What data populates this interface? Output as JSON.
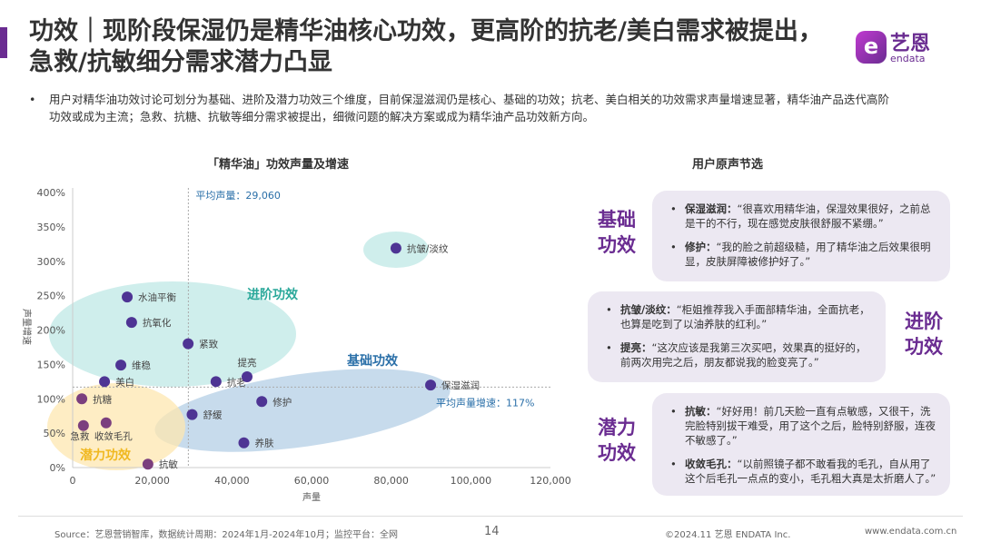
{
  "header": {
    "title": "功效｜现阶段保湿仍是精华油核心功效，更高阶的抗老/美白需求被提出，急救/抗敏细分需求潜力凸显",
    "logo_cn": "艺恩",
    "logo_en": "endata",
    "summary": "用户对精华油功效讨论可划分为基础、进阶及潜力功效三个维度，目前保湿滋润仍是核心、基础的功效；抗老、美白相关的功效需求声量增速显著，精华油产品迭代高阶功效或成为主流；急救、抗糖、抗敏等细分需求被提出，细微问题的解决方案或成为精华油产品功效新方向。",
    "accent_color": "#6a2c91"
  },
  "chart_data": {
    "type": "scatter",
    "title": "「精华油」功效声量及增速",
    "xlabel": "声量",
    "ylabel": "声量增速",
    "xlim": [
      0,
      120000
    ],
    "ylim": [
      0,
      400
    ],
    "xticks": [
      "0",
      "20,000",
      "40,000",
      "60,000",
      "80,000",
      "100,000",
      "120,000"
    ],
    "yticks": [
      "0%",
      "50%",
      "100%",
      "150%",
      "200%",
      "250%",
      "300%",
      "350%",
      "400%"
    ],
    "grid": false,
    "reference_lines": {
      "x_mean": 29060,
      "x_mean_label": "平均声量：29,060",
      "y_mean": 117,
      "y_mean_label": "平均声量增速：117%"
    },
    "groups": [
      {
        "label": "进阶功效",
        "color": "#2aa89a"
      },
      {
        "label": "基础功效",
        "color": "#2a6fa8"
      },
      {
        "label": "潜力功效",
        "color": "#f0b820"
      }
    ],
    "points": [
      {
        "name": "水油平衡",
        "x": 13700,
        "y": 248,
        "group": "进阶功效"
      },
      {
        "name": "抗氧化",
        "x": 14800,
        "y": 211,
        "group": "进阶功效"
      },
      {
        "name": "紧致",
        "x": 29000,
        "y": 180,
        "group": "进阶功效"
      },
      {
        "name": "维稳",
        "x": 12100,
        "y": 149,
        "group": "进阶功效"
      },
      {
        "name": "美白",
        "x": 8000,
        "y": 125,
        "group": "进阶功效"
      },
      {
        "name": "抗老",
        "x": 36000,
        "y": 125,
        "group": "进阶功效"
      },
      {
        "name": "提亮",
        "x": 43800,
        "y": 132,
        "group": "进阶功效"
      },
      {
        "name": "抗皱/淡纹",
        "x": 81200,
        "y": 319,
        "group": "进阶功效"
      },
      {
        "name": "保湿滋润",
        "x": 89900,
        "y": 120,
        "group": "基础功效"
      },
      {
        "name": "修护",
        "x": 47500,
        "y": 96,
        "group": "基础功效"
      },
      {
        "name": "舒缓",
        "x": 30000,
        "y": 77,
        "group": "基础功效"
      },
      {
        "name": "养肤",
        "x": 43000,
        "y": 36,
        "group": "基础功效"
      },
      {
        "name": "抗糖",
        "x": 2300,
        "y": 100,
        "group": "潜力功效"
      },
      {
        "name": "急救",
        "x": 2700,
        "y": 61,
        "group": "潜力功效"
      },
      {
        "name": "收敛毛孔",
        "x": 8400,
        "y": 65,
        "group": "潜力功效"
      },
      {
        "name": "抗敏",
        "x": 18900,
        "y": 5,
        "group": "潜力功效"
      }
    ]
  },
  "voices": {
    "title": "用户原声节选",
    "sections": [
      {
        "category": "基础功效",
        "items": [
          {
            "key": "保湿滋润：",
            "text": "“很喜欢用精华油，保湿效果很好，之前总是干的不行，现在感觉皮肤很舒服不紧绷。”"
          },
          {
            "key": "修护：",
            "text": "“我的脸之前超级糙，用了精华油之后效果很明显，皮肤屏障被修护好了。”"
          }
        ]
      },
      {
        "category": "进阶功效",
        "items": [
          {
            "key": "抗皱/淡纹：",
            "text": "“柜姐推荐我入手面部精华油，全面抗老，也算是吃到了以油养肤的红利。”"
          },
          {
            "key": "提亮：",
            "text": "“这次应该是我第三次买吧，效果真的挺好的，前两次用完之后，朋友都说我的脸变亮了。”"
          }
        ]
      },
      {
        "category": "潜力功效",
        "items": [
          {
            "key": "抗敏：",
            "text": "“好好用！前几天脸一直有点敏感，又很干，洗完脸特别拔干难受，用了这个之后，脸特别舒服，连夜不敏感了。”"
          },
          {
            "key": "收敛毛孔：",
            "text": "“以前照镜子都不敢看我的毛孔，自从用了这个后毛孔一点点的变小，毛孔粗大真是太折磨人了。”"
          }
        ]
      }
    ]
  },
  "footer": {
    "source": "Source：艺恩营销智库，数据统计周期：2024年1月-2024年10月；监控平台：全网",
    "page": "14",
    "copyright": "©2024.11 艺恩 ENDATA Inc.",
    "url": "www.endata.com.cn"
  }
}
